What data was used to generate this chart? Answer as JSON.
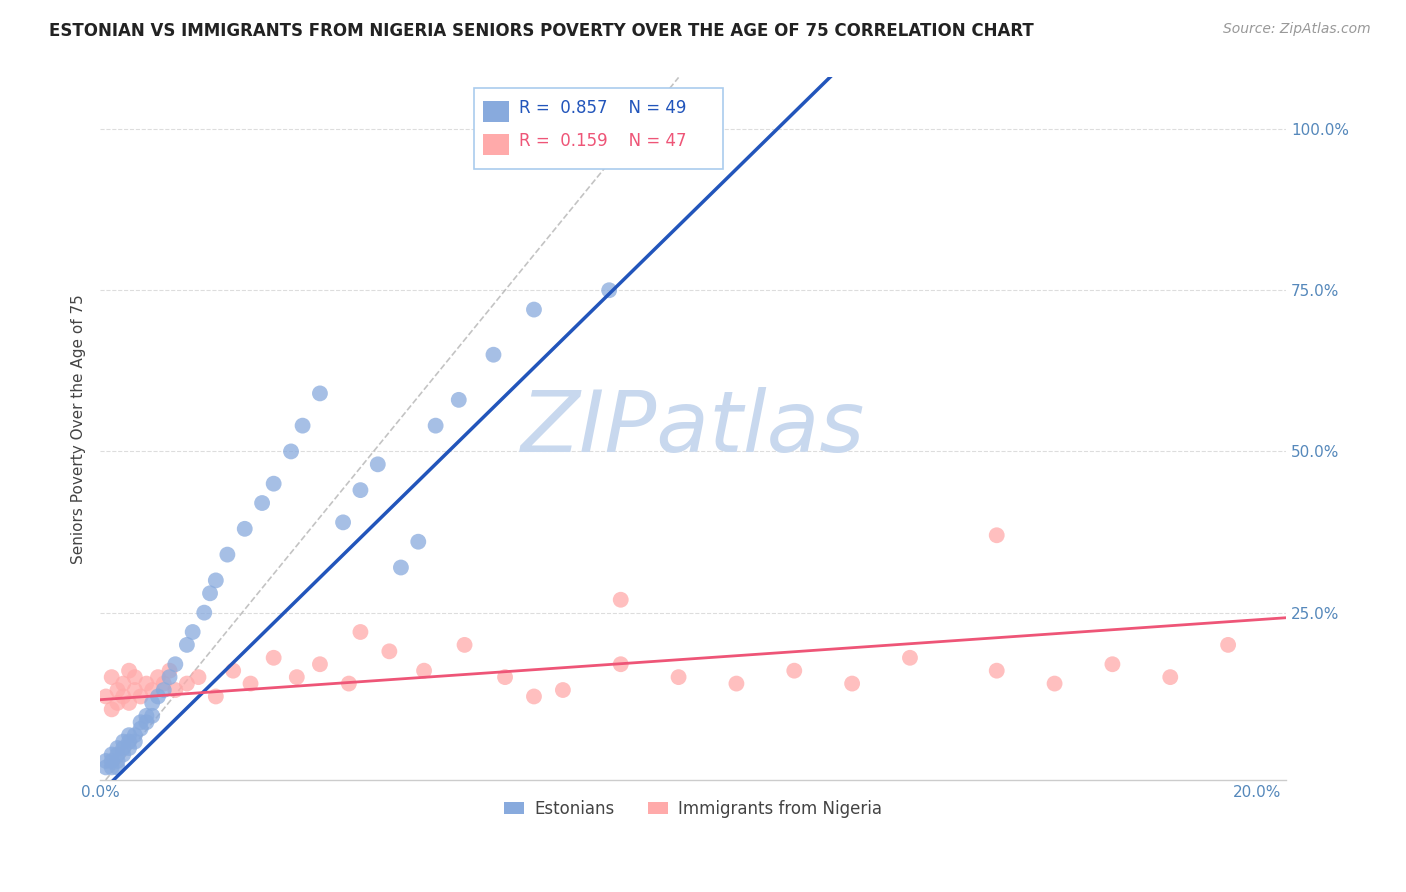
{
  "title": "ESTONIAN VS IMMIGRANTS FROM NIGERIA SENIORS POVERTY OVER THE AGE OF 75 CORRELATION CHART",
  "source": "Source: ZipAtlas.com",
  "ylabel": "Seniors Poverty Over the Age of 75",
  "xlim": [
    0.0,
    0.205
  ],
  "ylim": [
    -0.01,
    1.08
  ],
  "xtick_positions": [
    0.0,
    0.05,
    0.1,
    0.15,
    0.2
  ],
  "xticklabels": [
    "0.0%",
    "",
    "",
    "",
    "20.0%"
  ],
  "ytick_positions": [
    0.0,
    0.25,
    0.5,
    0.75,
    1.0
  ],
  "yticklabels": [
    "",
    "25.0%",
    "50.0%",
    "75.0%",
    "100.0%"
  ],
  "legend_labels": [
    "Estonians",
    "Immigrants from Nigeria"
  ],
  "R_blue": 0.857,
  "N_blue": 49,
  "R_pink": 0.159,
  "N_pink": 47,
  "blue_scatter_color": "#88AADD",
  "pink_scatter_color": "#FFAAAA",
  "blue_line_color": "#2255BB",
  "pink_line_color": "#EE5577",
  "blue_trend_slope": 8.8,
  "blue_trend_intercept": -0.03,
  "pink_trend_slope": 0.62,
  "pink_trend_intercept": 0.115,
  "ref_line_slope": 11.0,
  "ref_line_intercept": -0.02,
  "watermark_text": "ZIPatlas",
  "watermark_color": "#C8D8EE",
  "title_fontsize": 12,
  "axis_label_fontsize": 11,
  "tick_fontsize": 11,
  "source_fontsize": 10,
  "blue_x": [
    0.001,
    0.001,
    0.002,
    0.002,
    0.002,
    0.003,
    0.003,
    0.003,
    0.003,
    0.004,
    0.004,
    0.004,
    0.005,
    0.005,
    0.005,
    0.006,
    0.006,
    0.007,
    0.007,
    0.008,
    0.008,
    0.009,
    0.009,
    0.01,
    0.011,
    0.012,
    0.013,
    0.015,
    0.016,
    0.018,
    0.019,
    0.02,
    0.022,
    0.025,
    0.028,
    0.03,
    0.033,
    0.035,
    0.038,
    0.042,
    0.045,
    0.048,
    0.052,
    0.055,
    0.058,
    0.062,
    0.068,
    0.075,
    0.088
  ],
  "blue_y": [
    0.01,
    0.02,
    0.01,
    0.03,
    0.02,
    0.02,
    0.04,
    0.03,
    0.01,
    0.04,
    0.05,
    0.03,
    0.05,
    0.04,
    0.06,
    0.06,
    0.05,
    0.07,
    0.08,
    0.08,
    0.09,
    0.09,
    0.11,
    0.12,
    0.13,
    0.15,
    0.17,
    0.2,
    0.22,
    0.25,
    0.28,
    0.3,
    0.34,
    0.38,
    0.42,
    0.45,
    0.5,
    0.54,
    0.59,
    0.39,
    0.44,
    0.48,
    0.32,
    0.36,
    0.54,
    0.58,
    0.65,
    0.72,
    0.75
  ],
  "pink_x": [
    0.001,
    0.002,
    0.002,
    0.003,
    0.003,
    0.004,
    0.004,
    0.005,
    0.005,
    0.006,
    0.006,
    0.007,
    0.008,
    0.009,
    0.01,
    0.011,
    0.012,
    0.013,
    0.015,
    0.017,
    0.02,
    0.023,
    0.026,
    0.03,
    0.034,
    0.038,
    0.043,
    0.05,
    0.056,
    0.063,
    0.07,
    0.08,
    0.09,
    0.1,
    0.11,
    0.12,
    0.13,
    0.14,
    0.155,
    0.165,
    0.175,
    0.185,
    0.195,
    0.155,
    0.09,
    0.045,
    0.075
  ],
  "pink_y": [
    0.12,
    0.1,
    0.15,
    0.13,
    0.11,
    0.14,
    0.12,
    0.16,
    0.11,
    0.13,
    0.15,
    0.12,
    0.14,
    0.13,
    0.15,
    0.14,
    0.16,
    0.13,
    0.14,
    0.15,
    0.12,
    0.16,
    0.14,
    0.18,
    0.15,
    0.17,
    0.14,
    0.19,
    0.16,
    0.2,
    0.15,
    0.13,
    0.17,
    0.15,
    0.14,
    0.16,
    0.14,
    0.18,
    0.16,
    0.14,
    0.17,
    0.15,
    0.2,
    0.37,
    0.27,
    0.22,
    0.12
  ]
}
